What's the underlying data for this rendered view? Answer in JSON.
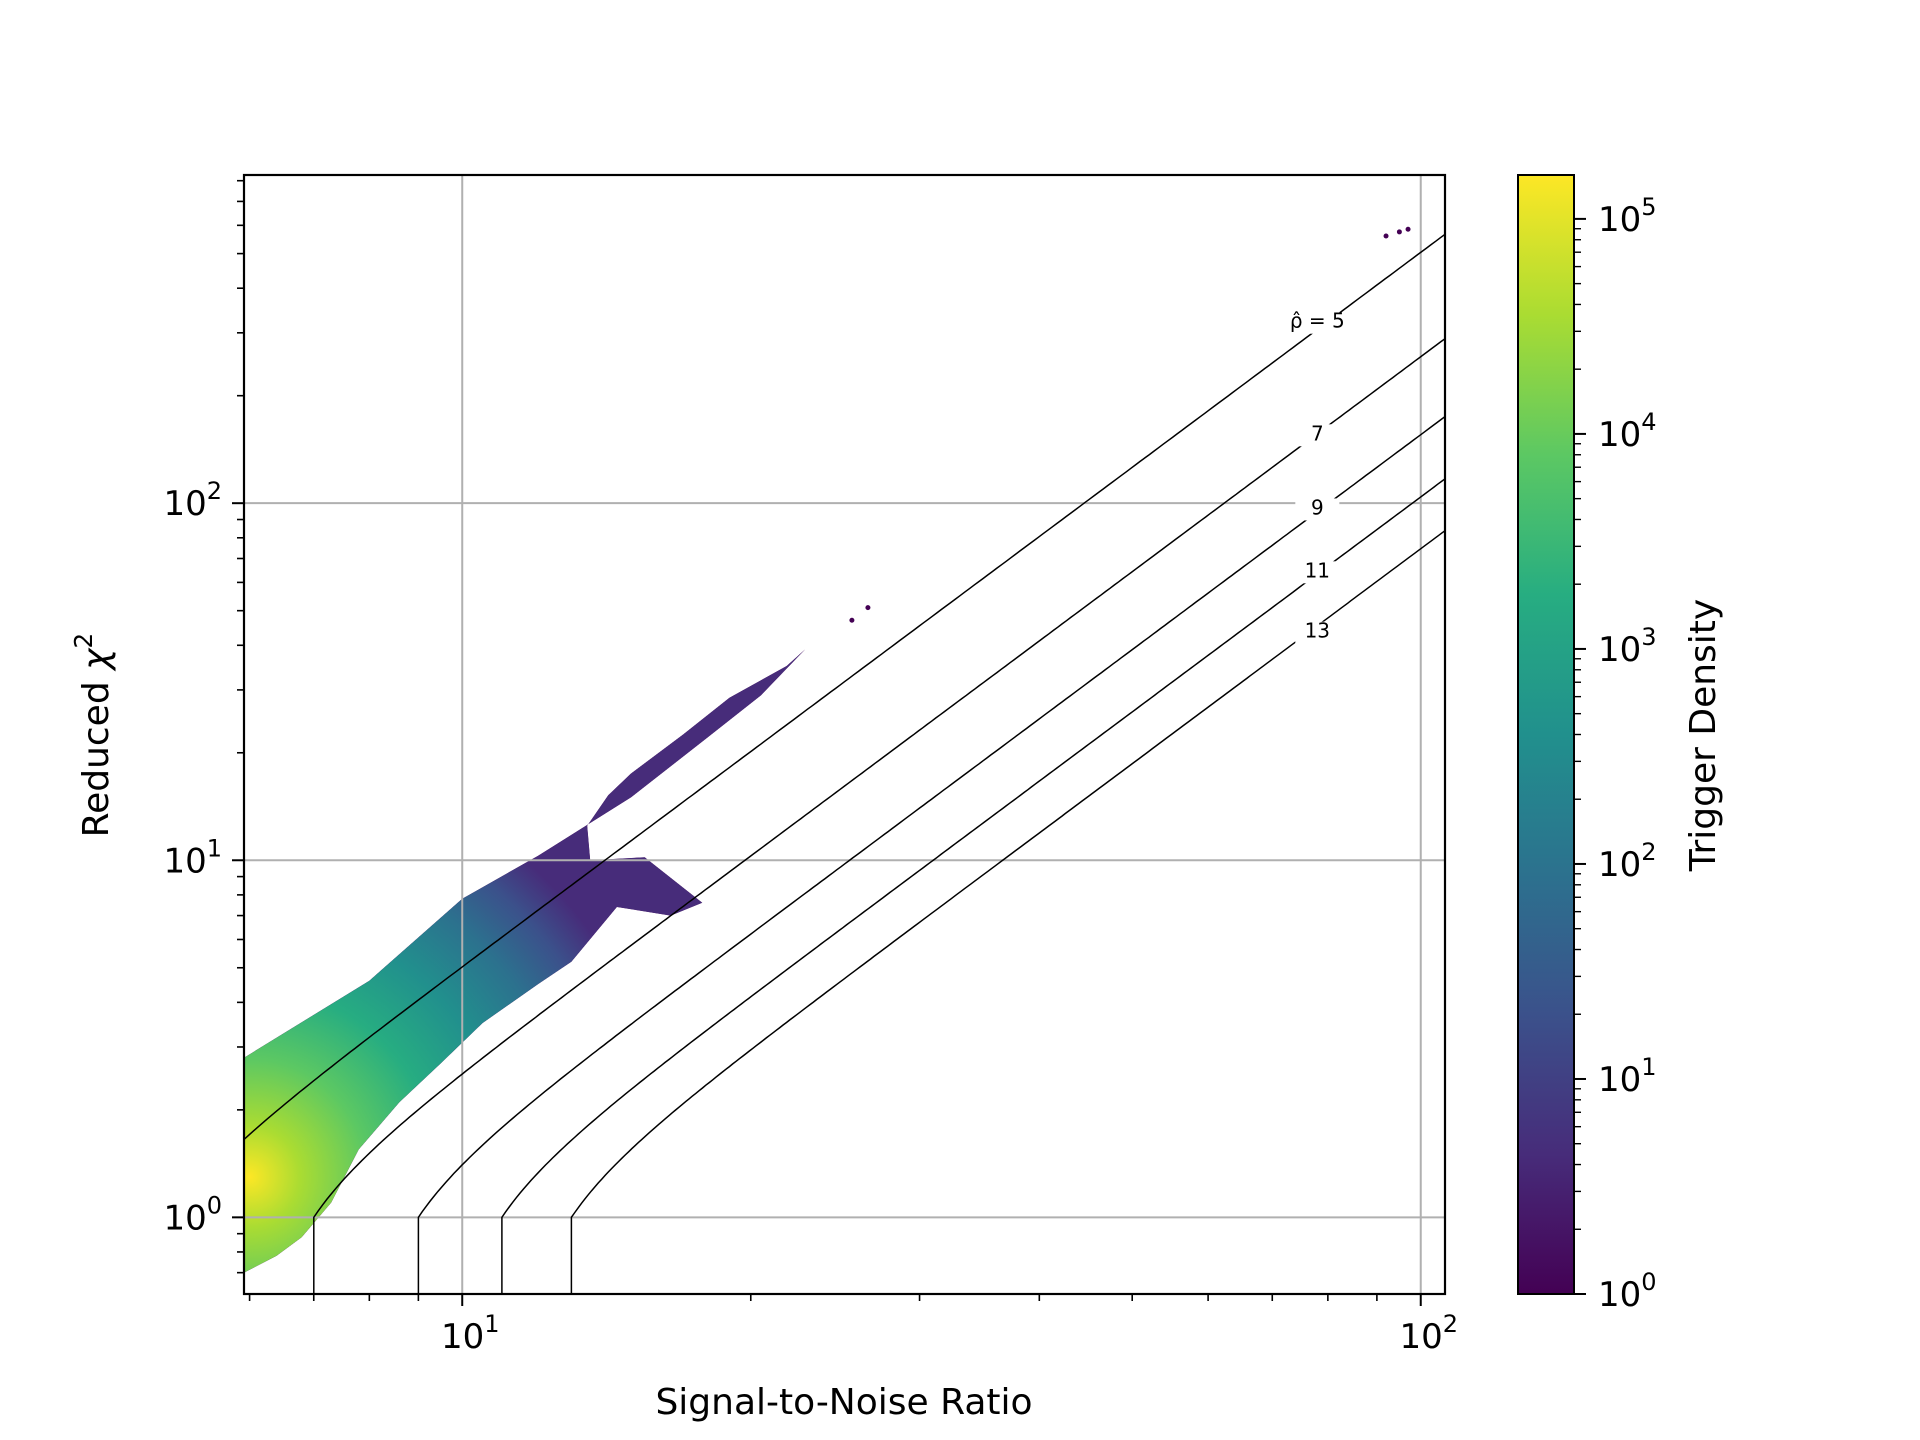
{
  "chart_data": {
    "type": "heatmap",
    "subtype": "hexbin-log-density",
    "xlabel": "Signal-to-Noise Ratio",
    "ylabel_text": "Reduced ",
    "ylabel_symbol": "χ",
    "ylabel_sup": "2",
    "x_scale": "log",
    "y_scale": "log",
    "xlim": [
      5.92,
      106
    ],
    "ylim": [
      0.61,
      830
    ],
    "grid": true,
    "x_ticks": [
      {
        "base": "10",
        "exp": "1",
        "value": 10
      },
      {
        "base": "10",
        "exp": "2",
        "value": 100
      }
    ],
    "y_ticks": [
      {
        "base": "10",
        "exp": "0",
        "value": 1
      },
      {
        "base": "10",
        "exp": "1",
        "value": 10
      },
      {
        "base": "10",
        "exp": "2",
        "value": 100
      }
    ],
    "colorbar": {
      "label": "Trigger Density",
      "scale": "log",
      "colormap": "viridis",
      "range": [
        1,
        160000
      ],
      "ticks": [
        {
          "base": "10",
          "exp": "0",
          "value": 1
        },
        {
          "base": "10",
          "exp": "1",
          "value": 10
        },
        {
          "base": "10",
          "exp": "2",
          "value": 100
        },
        {
          "base": "10",
          "exp": "3",
          "value": 1000
        },
        {
          "base": "10",
          "exp": "4",
          "value": 10000
        },
        {
          "base": "10",
          "exp": "5",
          "value": 100000
        }
      ],
      "colors": [
        "#440154",
        "#472c7a",
        "#3b518b",
        "#2c718e",
        "#21908d",
        "#27ad81",
        "#5cc863",
        "#aadc32",
        "#fde725"
      ]
    },
    "contours": [
      {
        "rho": 5,
        "label": "ρ̂ = 5",
        "label_at": [
          78,
          310
        ]
      },
      {
        "rho": 7,
        "label": "7",
        "label_at": [
          78,
          150
        ]
      },
      {
        "rho": 9,
        "label": "9",
        "label_at": [
          78,
          93
        ]
      },
      {
        "rho": 11,
        "label": "11",
        "label_at": [
          78,
          62
        ]
      },
      {
        "rho": 13,
        "label": "13",
        "label_at": [
          78,
          42
        ]
      }
    ],
    "density_region": {
      "upper_edge": [
        [
          5.92,
          2.8
        ],
        [
          8.0,
          4.6
        ],
        [
          10.0,
          7.8
        ],
        [
          12.0,
          10.3
        ],
        [
          15.0,
          15.0
        ],
        [
          18.0,
          22.0
        ],
        [
          20.5,
          29.0
        ],
        [
          22.8,
          39.0
        ]
      ],
      "lower_edge": [
        [
          22.8,
          39.0
        ],
        [
          21.8,
          35.0
        ],
        [
          19.0,
          28.5
        ],
        [
          17.0,
          22.5
        ],
        [
          15.0,
          17.5
        ],
        [
          14.2,
          15.2
        ],
        [
          13.5,
          12.5
        ],
        [
          13.6,
          10.0
        ],
        [
          15.5,
          10.2
        ],
        [
          17.8,
          7.6
        ],
        [
          16.5,
          7.0
        ],
        [
          14.5,
          7.4
        ],
        [
          13.0,
          5.2
        ],
        [
          12.0,
          4.5
        ],
        [
          10.5,
          3.5
        ],
        [
          9.5,
          2.7
        ],
        [
          8.6,
          2.1
        ],
        [
          7.8,
          1.55
        ],
        [
          7.3,
          1.1
        ],
        [
          6.8,
          0.88
        ],
        [
          6.4,
          0.78
        ],
        [
          5.92,
          0.7
        ]
      ],
      "outliers": [
        [
          25.5,
          47
        ],
        [
          26.5,
          51
        ],
        [
          92,
          560
        ],
        [
          95,
          575
        ],
        [
          97,
          585
        ]
      ],
      "peak": [
        6.0,
        1.3
      ]
    }
  }
}
